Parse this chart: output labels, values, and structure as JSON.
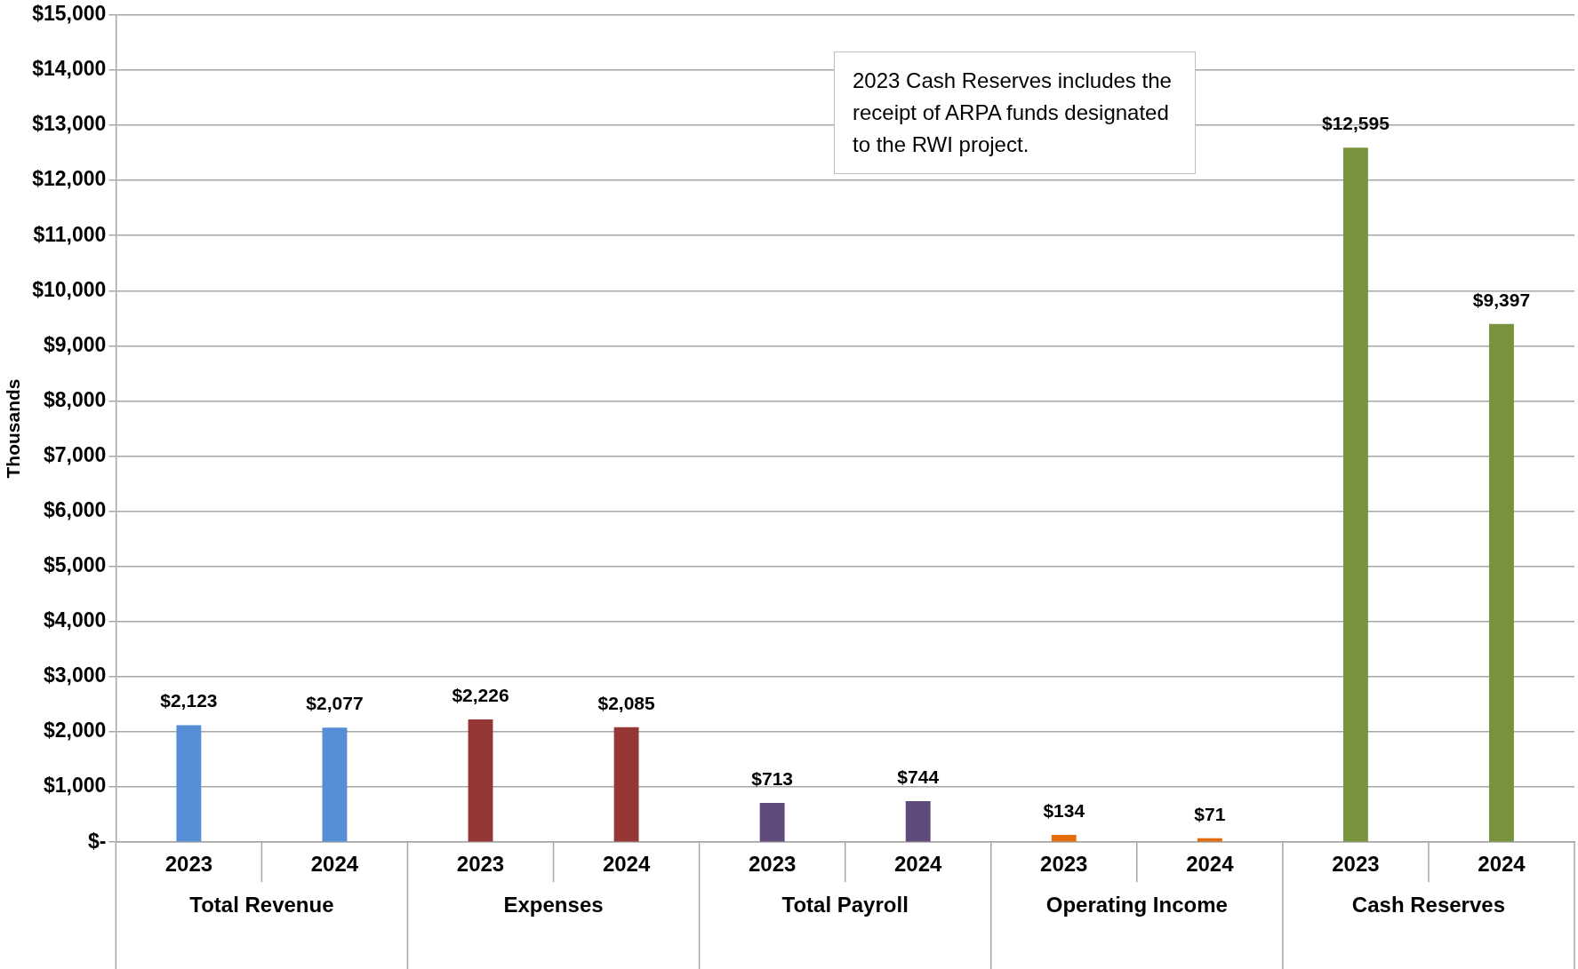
{
  "chart_data": {
    "type": "bar",
    "ylabel": "Thousands",
    "categories": [
      "2023",
      "2024",
      "2023",
      "2024",
      "2023",
      "2024",
      "2023",
      "2024",
      "2023",
      "2024"
    ],
    "values": [
      2123,
      2077,
      2226,
      2085,
      713,
      744,
      134,
      71,
      12595,
      9397
    ],
    "colors": [
      "#558ed5",
      "#558ed5",
      "#953735",
      "#953735",
      "#604a7b",
      "#604a7b",
      "#e46c0a",
      "#e46c0a",
      "#77933c",
      "#77933c"
    ],
    "value_labels": [
      "$2,123",
      "$2,077",
      "$2,226",
      "$2,085",
      "$713",
      "$744",
      "$134",
      "$71",
      "$12,595",
      "$9,397"
    ],
    "ylim": [
      0,
      15000
    ],
    "yticks": [
      {
        "value": 0,
        "label": "$-"
      },
      {
        "value": 1000,
        "label": "$1,000"
      },
      {
        "value": 2000,
        "label": "$2,000"
      },
      {
        "value": 3000,
        "label": "$3,000"
      },
      {
        "value": 4000,
        "label": "$4,000"
      },
      {
        "value": 5000,
        "label": "$5,000"
      },
      {
        "value": 6000,
        "label": "$6,000"
      },
      {
        "value": 7000,
        "label": "$7,000"
      },
      {
        "value": 8000,
        "label": "$8,000"
      },
      {
        "value": 9000,
        "label": "$9,000"
      },
      {
        "value": 10000,
        "label": "$10,000"
      },
      {
        "value": 11000,
        "label": "$11,000"
      },
      {
        "value": 12000,
        "label": "$12,000"
      },
      {
        "value": 13000,
        "label": "$13,000"
      },
      {
        "value": 14000,
        "label": "$14,000"
      },
      {
        "value": 15000,
        "label": "$15,000"
      }
    ],
    "grid": "y",
    "legend": false,
    "annotations": [
      "Total Revenue",
      "Expenses",
      "Total Payroll",
      "Operating Income",
      "Cash Reserves",
      "2023 Cash Reserves includes the receipt of ARPA funds designated to the RWI project."
    ]
  }
}
